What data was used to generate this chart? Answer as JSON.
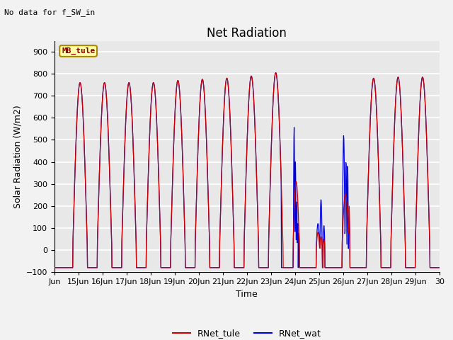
{
  "title": "Net Radiation",
  "xlabel": "Time",
  "ylabel": "Solar Radiation (W/m2)",
  "top_left_text": "No data for f_SW_in",
  "legend_box_text": "MB_tule",
  "ylim": [
    -100,
    950
  ],
  "yticks": [
    -100,
    0,
    100,
    200,
    300,
    400,
    500,
    600,
    700,
    800,
    900
  ],
  "xtick_labels": [
    "Jun",
    "15Jun",
    "16Jun",
    "17Jun",
    "18Jun",
    "19Jun",
    "20Jun",
    "21Jun",
    "22Jun",
    "23Jun",
    "24Jun",
    "25Jun",
    "26Jun",
    "27Jun",
    "28Jun",
    "29Jun",
    "30"
  ],
  "line1_color": "#cc0000",
  "line2_color": "#0000dd",
  "line1_label": "RNet_tule",
  "line2_label": "RNet_wat",
  "bg_color": "#e8e8e8",
  "grid_color": "white",
  "title_fontsize": 12,
  "label_fontsize": 9,
  "tick_fontsize": 8,
  "legend_fontsize": 9
}
